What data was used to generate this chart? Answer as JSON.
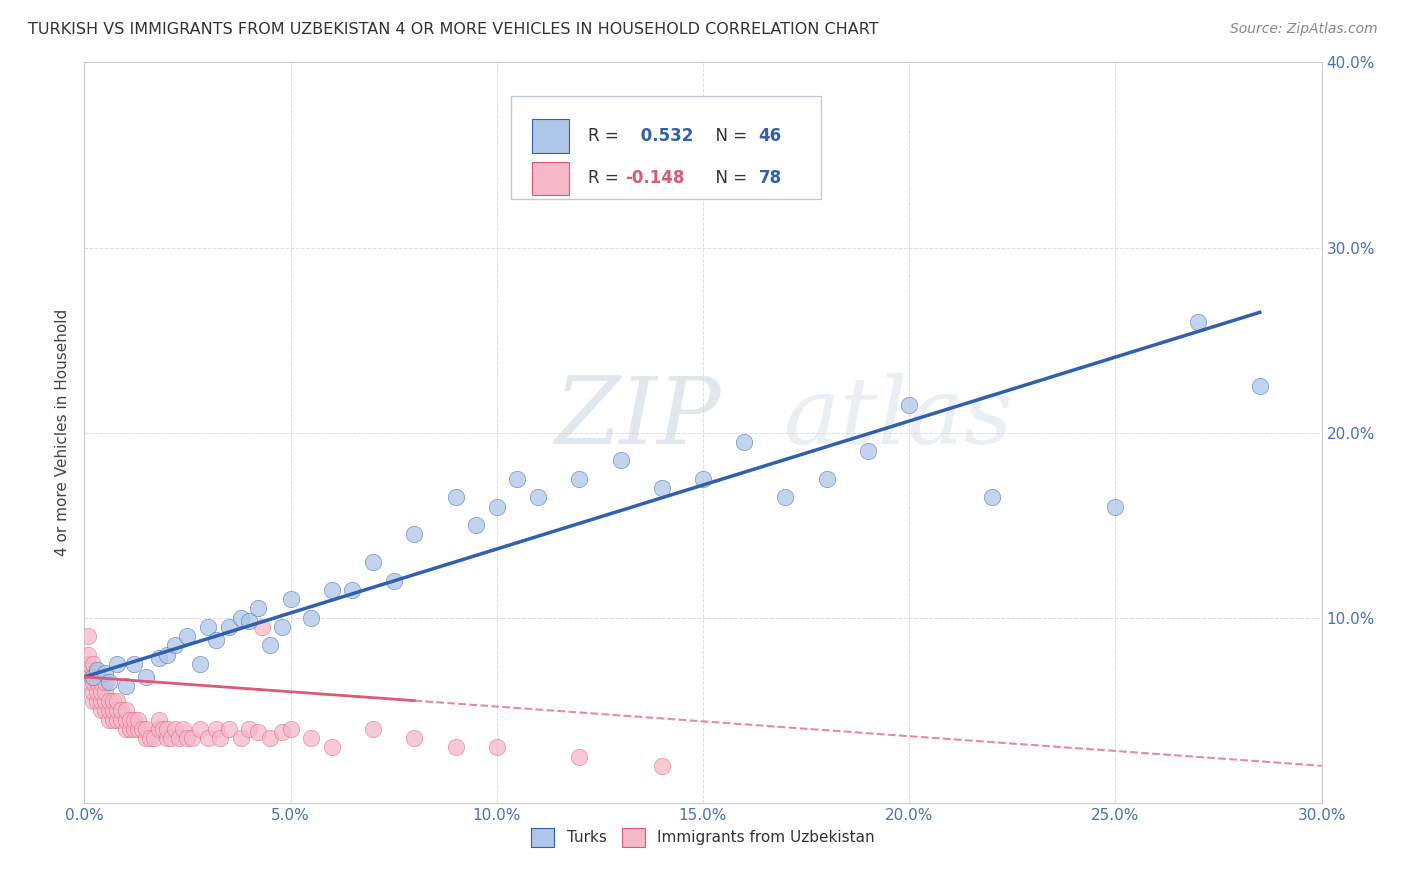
{
  "title": "TURKISH VS IMMIGRANTS FROM UZBEKISTAN 4 OR MORE VEHICLES IN HOUSEHOLD CORRELATION CHART",
  "source": "Source: ZipAtlas.com",
  "ylabel": "4 or more Vehicles in Household",
  "xlim": [
    0.0,
    0.3
  ],
  "ylim": [
    0.0,
    0.4
  ],
  "xtick_values": [
    0.0,
    0.05,
    0.1,
    0.15,
    0.2,
    0.25,
    0.3
  ],
  "ytick_values": [
    0.0,
    0.1,
    0.2,
    0.3,
    0.4
  ],
  "r_turks": 0.532,
  "n_turks": 46,
  "r_uzbek": -0.148,
  "n_uzbek": 78,
  "color_turks": "#aec6e8",
  "color_uzbek": "#f4b8c8",
  "line_color_turks": "#3060b0",
  "line_color_uzbek": "#e05878",
  "background_color": "#ffffff",
  "grid_color": "#d0dce8",
  "turks_x": [
    0.002,
    0.003,
    0.005,
    0.006,
    0.008,
    0.01,
    0.012,
    0.015,
    0.018,
    0.02,
    0.022,
    0.025,
    0.028,
    0.03,
    0.032,
    0.035,
    0.038,
    0.04,
    0.042,
    0.045,
    0.048,
    0.05,
    0.055,
    0.06,
    0.065,
    0.07,
    0.075,
    0.08,
    0.09,
    0.095,
    0.1,
    0.105,
    0.11,
    0.12,
    0.13,
    0.14,
    0.15,
    0.16,
    0.17,
    0.18,
    0.19,
    0.2,
    0.22,
    0.25,
    0.27,
    0.285
  ],
  "turks_y": [
    0.068,
    0.072,
    0.07,
    0.065,
    0.075,
    0.063,
    0.075,
    0.068,
    0.078,
    0.08,
    0.085,
    0.09,
    0.075,
    0.095,
    0.088,
    0.095,
    0.1,
    0.098,
    0.105,
    0.085,
    0.095,
    0.11,
    0.1,
    0.115,
    0.115,
    0.13,
    0.12,
    0.145,
    0.165,
    0.15,
    0.16,
    0.175,
    0.165,
    0.175,
    0.185,
    0.17,
    0.175,
    0.195,
    0.165,
    0.175,
    0.19,
    0.215,
    0.165,
    0.16,
    0.26,
    0.225
  ],
  "uzbek_x": [
    0.001,
    0.001,
    0.001,
    0.001,
    0.001,
    0.002,
    0.002,
    0.002,
    0.002,
    0.002,
    0.003,
    0.003,
    0.003,
    0.003,
    0.004,
    0.004,
    0.004,
    0.004,
    0.005,
    0.005,
    0.005,
    0.005,
    0.006,
    0.006,
    0.006,
    0.007,
    0.007,
    0.007,
    0.008,
    0.008,
    0.008,
    0.009,
    0.009,
    0.01,
    0.01,
    0.01,
    0.011,
    0.011,
    0.012,
    0.012,
    0.013,
    0.013,
    0.014,
    0.015,
    0.015,
    0.016,
    0.017,
    0.018,
    0.018,
    0.019,
    0.02,
    0.02,
    0.021,
    0.022,
    0.023,
    0.024,
    0.025,
    0.026,
    0.028,
    0.03,
    0.032,
    0.033,
    0.035,
    0.038,
    0.04,
    0.042,
    0.043,
    0.045,
    0.048,
    0.05,
    0.055,
    0.06,
    0.07,
    0.08,
    0.09,
    0.1,
    0.12,
    0.14
  ],
  "uzbek_y": [
    0.065,
    0.07,
    0.075,
    0.08,
    0.09,
    0.055,
    0.06,
    0.065,
    0.07,
    0.075,
    0.055,
    0.06,
    0.065,
    0.07,
    0.05,
    0.055,
    0.06,
    0.065,
    0.05,
    0.055,
    0.06,
    0.065,
    0.045,
    0.05,
    0.055,
    0.045,
    0.05,
    0.055,
    0.045,
    0.05,
    0.055,
    0.045,
    0.05,
    0.04,
    0.045,
    0.05,
    0.04,
    0.045,
    0.04,
    0.045,
    0.04,
    0.045,
    0.04,
    0.035,
    0.04,
    0.035,
    0.035,
    0.04,
    0.045,
    0.04,
    0.035,
    0.04,
    0.035,
    0.04,
    0.035,
    0.04,
    0.035,
    0.035,
    0.04,
    0.035,
    0.04,
    0.035,
    0.04,
    0.035,
    0.04,
    0.038,
    0.095,
    0.035,
    0.038,
    0.04,
    0.035,
    0.03,
    0.04,
    0.035,
    0.03,
    0.03,
    0.025,
    0.02
  ],
  "line_turks_x0": 0.0,
  "line_turks_y0": 0.068,
  "line_turks_x1": 0.285,
  "line_turks_y1": 0.265,
  "line_uzbek_x0": 0.0,
  "line_uzbek_y0": 0.068,
  "line_uzbek_x1": 0.3,
  "line_uzbek_y1": 0.02,
  "line_uzbek_solid_x1": 0.08
}
